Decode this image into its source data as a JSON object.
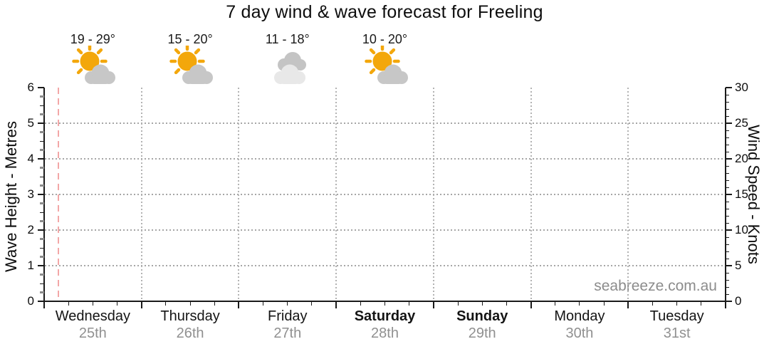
{
  "chart_data": {
    "type": "line",
    "title": "7 day wind & wave forecast for Freeling",
    "grid": true,
    "plot_empty_note": "no wave/wind series points are drawn in the visible plot area",
    "series": [
      {
        "name": "Wave Height",
        "axis": "left",
        "values": []
      },
      {
        "name": "Wind Speed",
        "axis": "right",
        "values": []
      }
    ],
    "left_axis": {
      "label": "Wave Height - Metres",
      "min": 0,
      "max": 6,
      "major_ticks": [
        0,
        1,
        2,
        3,
        4,
        5,
        6
      ],
      "minor_step": 0.25
    },
    "right_axis": {
      "label": "Wind Speed - Knots",
      "min": 0,
      "max": 30,
      "major_ticks": [
        0,
        5,
        10,
        15,
        20,
        25,
        30
      ],
      "minor_step": 1
    },
    "x_axis": {
      "days": [
        {
          "name": "Wednesday",
          "date": "25th",
          "weekend": false
        },
        {
          "name": "Thursday",
          "date": "26th",
          "weekend": false
        },
        {
          "name": "Friday",
          "date": "27th",
          "weekend": false
        },
        {
          "name": "Saturday",
          "date": "28th",
          "weekend": true
        },
        {
          "name": "Sunday",
          "date": "29th",
          "weekend": true
        },
        {
          "name": "Monday",
          "date": "30th",
          "weekend": false
        },
        {
          "name": "Tuesday",
          "date": "31st",
          "weekend": false
        }
      ],
      "minor_divisions_per_day": 4
    },
    "forecast_headers": [
      {
        "day": "Wednesday",
        "temp": "19 - 29°",
        "condition": "partly-cloudy"
      },
      {
        "day": "Thursday",
        "temp": "15 - 20°",
        "condition": "partly-cloudy"
      },
      {
        "day": "Friday",
        "temp": "11 - 18°",
        "condition": "cloudy"
      },
      {
        "day": "Saturday",
        "temp": "10 - 20°",
        "condition": "partly-cloudy"
      }
    ],
    "now_marker": {
      "position_fraction": 0.02,
      "color": "#f3a7a7"
    },
    "colors": {
      "axis": "#1a1a1a",
      "grid": "#a6a6a6",
      "sun": "#f3a70b",
      "cloud": "#c7c7c7",
      "cloud_back": "#c4c4c4",
      "cloud_front": "#e8e8e8",
      "date_text": "#909090",
      "watermark_text": "#8c8c8c"
    }
  },
  "watermark": "seabreeze.com.au"
}
